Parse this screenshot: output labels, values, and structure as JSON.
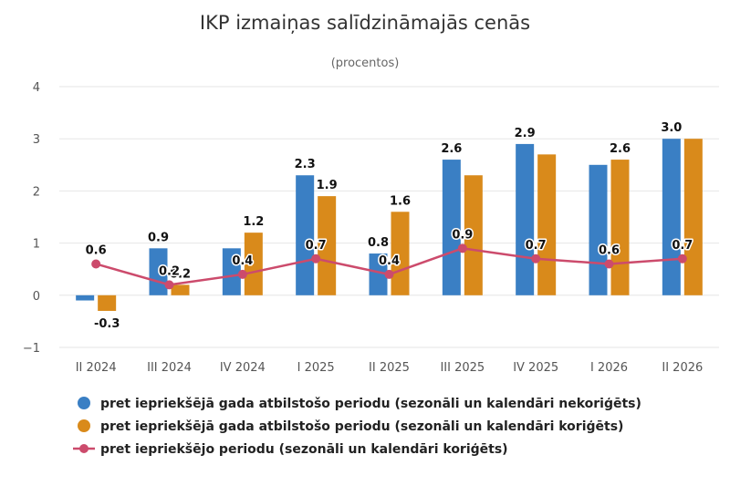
{
  "chart_data": {
    "type": "bar",
    "title": "IKP izmaiņas salīdzināmajās cenās",
    "subtitle": "(procentos)",
    "categories": [
      "II 2024",
      "III 2024",
      "IV 2024",
      "I 2025",
      "II 2025",
      "III 2025",
      "IV 2025",
      "I 2026",
      "II 2026"
    ],
    "ylim": [
      -1,
      4
    ],
    "yticks": [
      -1,
      0,
      1,
      2,
      3,
      4
    ],
    "grid": true,
    "legend_position": "bottom",
    "series": [
      {
        "name": "pret iepriekšējā gada atbilstošo periodu (sezonāli un kalendāri nekoriģēts)",
        "type": "bar",
        "color": "#3a7fc4",
        "values": [
          -0.1,
          0.9,
          0.9,
          2.3,
          0.8,
          2.6,
          2.9,
          2.5,
          3.0
        ],
        "labels": [
          "",
          "0.9",
          "",
          "2.3",
          "0.8",
          "2.6",
          "2.9",
          "",
          "3.0"
        ]
      },
      {
        "name": "pret iepriekšējā gada atbilstošo periodu (sezonāli un kalendāri koriģēts)",
        "type": "bar",
        "color": "#d98a1b",
        "values": [
          -0.3,
          0.2,
          1.2,
          1.9,
          1.6,
          2.3,
          2.7,
          2.6,
          3.0
        ],
        "labels": [
          "-0.3",
          "0.2",
          "1.2",
          "1.9",
          "1.6",
          "",
          "",
          "2.6",
          ""
        ]
      },
      {
        "name": "pret iepriekšējo periodu (sezonāli un kalendāri koriģēts)",
        "type": "line",
        "color": "#cc4b6c",
        "values": [
          0.6,
          0.2,
          0.4,
          0.7,
          0.4,
          0.9,
          0.7,
          0.6,
          0.7
        ],
        "labels": [
          "0.6",
          "0.2",
          "0.4",
          "0.7",
          "0.4",
          "0.9",
          "0.7",
          "0.6",
          "0.7"
        ]
      }
    ]
  }
}
